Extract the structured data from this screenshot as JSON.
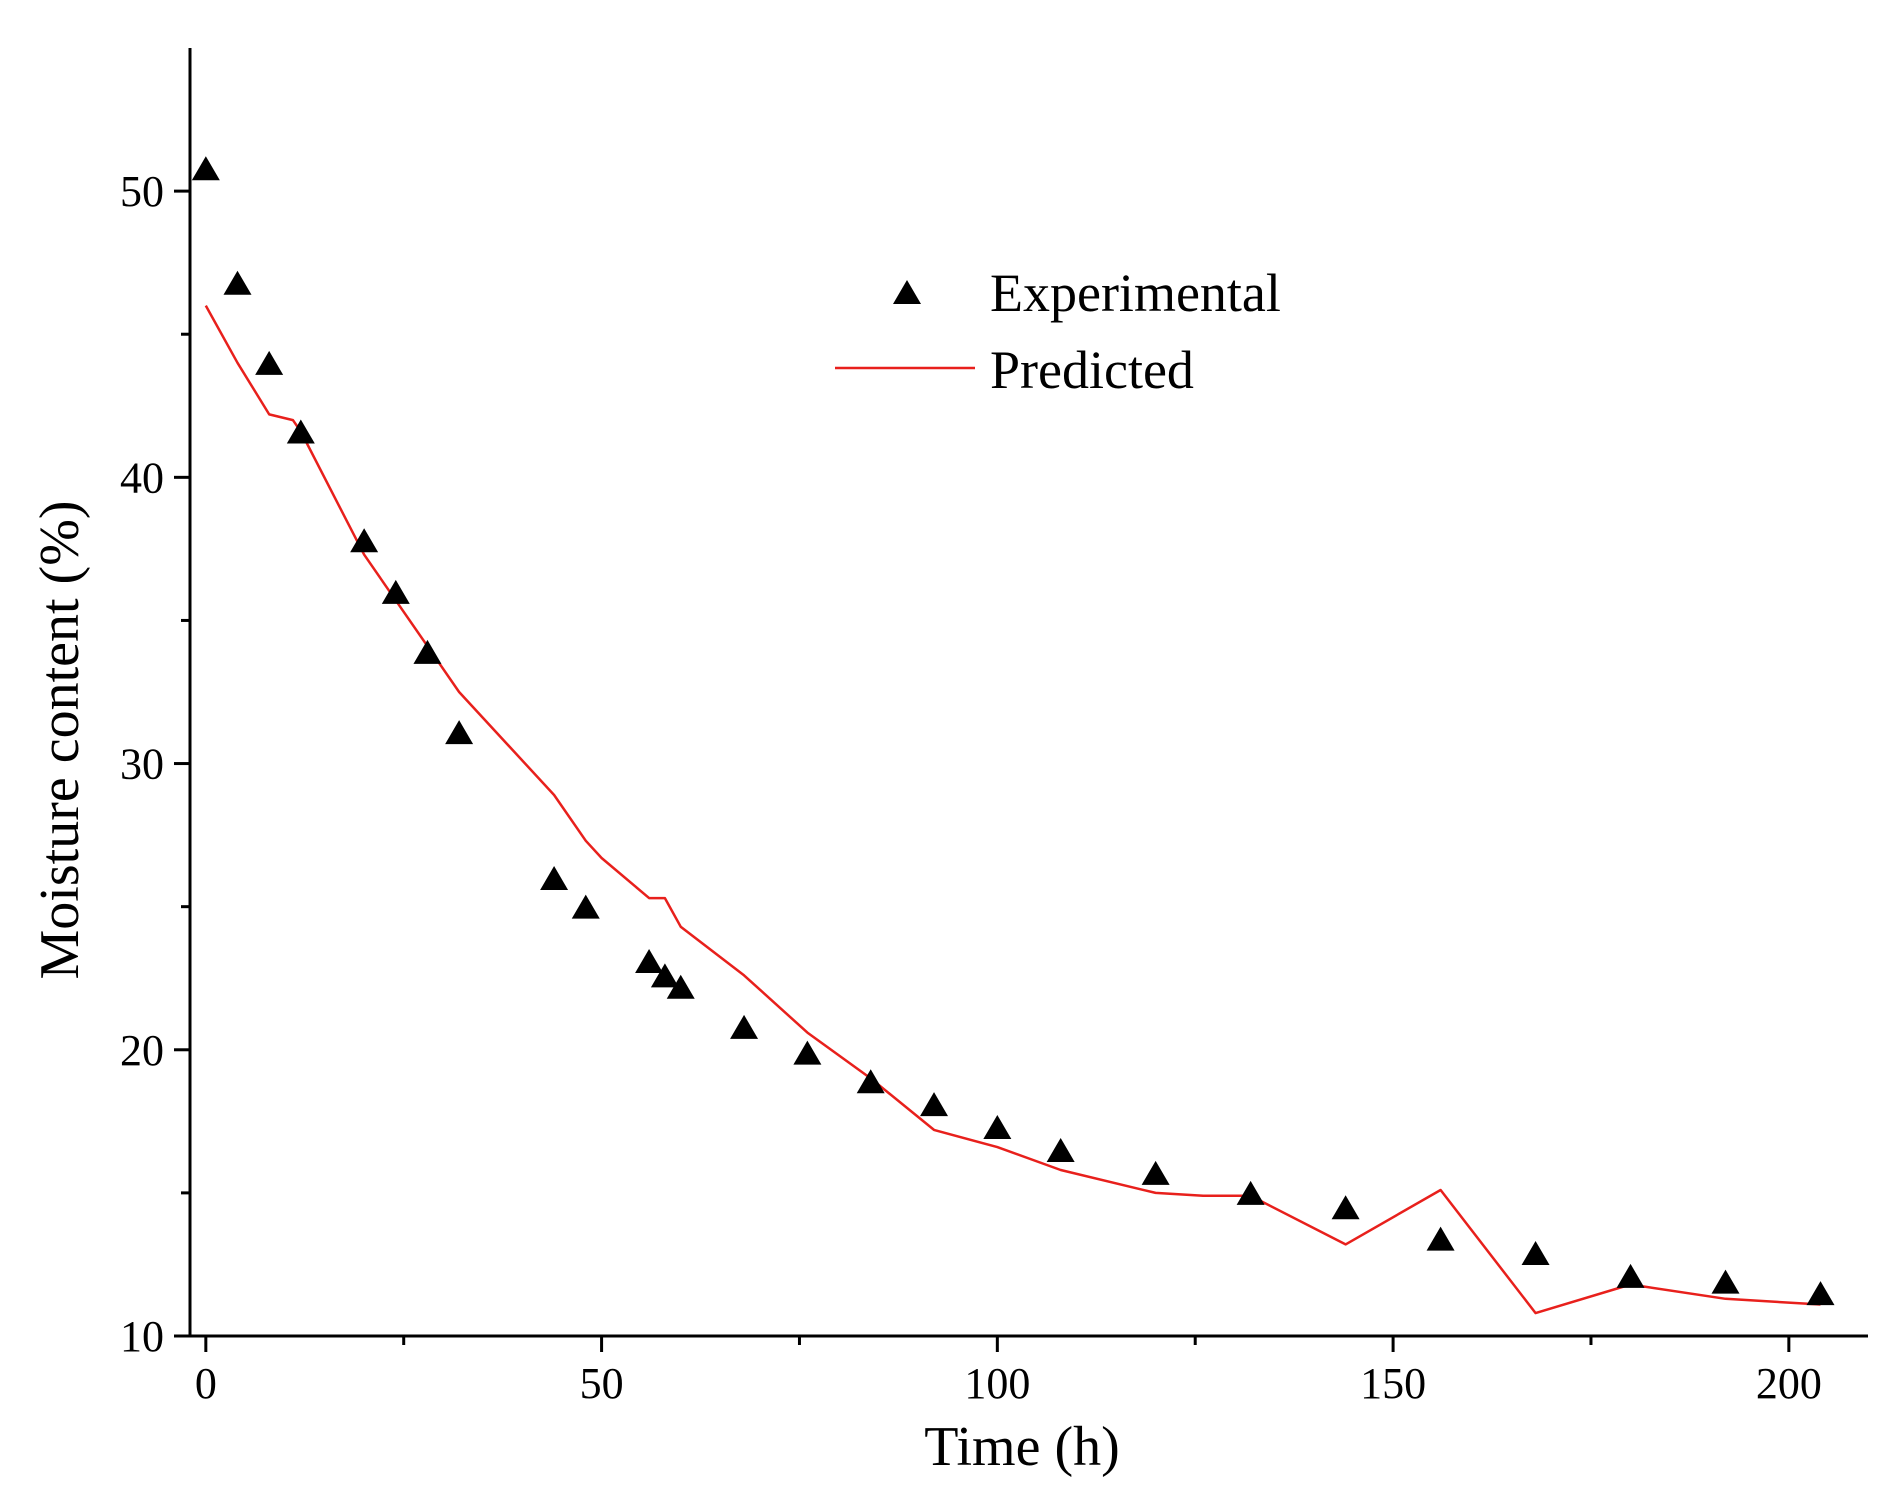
{
  "colors": {
    "predicted_line": "#e8201c",
    "markers": "#000000",
    "axes": "#000000"
  },
  "chart_data": {
    "type": "scatter+line",
    "title": "",
    "xlabel": "Time (h)",
    "ylabel": "Moisture content (%)",
    "xlim": [
      -2,
      210
    ],
    "ylim": [
      10,
      55
    ],
    "x_ticks": [
      {
        "value": 0,
        "label": "0"
      },
      {
        "value": 50,
        "label": "50"
      },
      {
        "value": 100,
        "label": "100"
      },
      {
        "value": 150,
        "label": "150"
      },
      {
        "value": 200,
        "label": "200"
      }
    ],
    "x_minor_ticks": [
      25,
      75,
      125,
      175
    ],
    "y_ticks": [
      {
        "value": 10,
        "label": "10"
      },
      {
        "value": 20,
        "label": "20"
      },
      {
        "value": 30,
        "label": "30"
      },
      {
        "value": 40,
        "label": "40"
      },
      {
        "value": 50,
        "label": "50"
      }
    ],
    "y_minor_ticks": [
      15,
      25,
      35,
      45
    ],
    "legend": {
      "position": "upper-center",
      "entries": [
        {
          "label": "Experimental",
          "marker": "triangle"
        },
        {
          "label": "Predicted",
          "marker": "line"
        }
      ]
    },
    "series": [
      {
        "name": "Experimental",
        "style": "triangle-markers",
        "x": [
          0,
          4,
          8,
          12,
          20,
          24,
          28,
          32,
          44,
          48,
          56,
          58,
          60,
          68,
          76,
          84,
          92,
          100,
          108,
          120,
          132,
          144,
          156,
          168,
          180,
          192,
          204
        ],
        "y": [
          50.8,
          46.8,
          44.0,
          41.6,
          37.8,
          36.0,
          33.9,
          31.1,
          26.0,
          25.0,
          23.1,
          22.6,
          22.2,
          20.8,
          19.9,
          18.9,
          18.1,
          17.3,
          16.5,
          15.7,
          15.0,
          14.5,
          13.4,
          12.9,
          12.1,
          11.9,
          11.5
        ]
      },
      {
        "name": "Predicted",
        "style": "line",
        "x": [
          0,
          4,
          8,
          11,
          12,
          20,
          24,
          28,
          32,
          44,
          48,
          50,
          56,
          58,
          60,
          68,
          76,
          84,
          92,
          100,
          108,
          120,
          126,
          132,
          144,
          156,
          168,
          180,
          192,
          204
        ],
        "y": [
          46.0,
          44.0,
          42.2,
          42.0,
          41.6,
          37.3,
          35.7,
          34.1,
          32.5,
          28.9,
          27.3,
          26.7,
          25.3,
          25.3,
          24.3,
          22.6,
          20.6,
          19.0,
          17.2,
          16.6,
          15.8,
          15.0,
          14.9,
          14.9,
          13.2,
          15.1,
          10.8,
          11.8,
          11.3,
          11.1
        ]
      }
    ]
  }
}
